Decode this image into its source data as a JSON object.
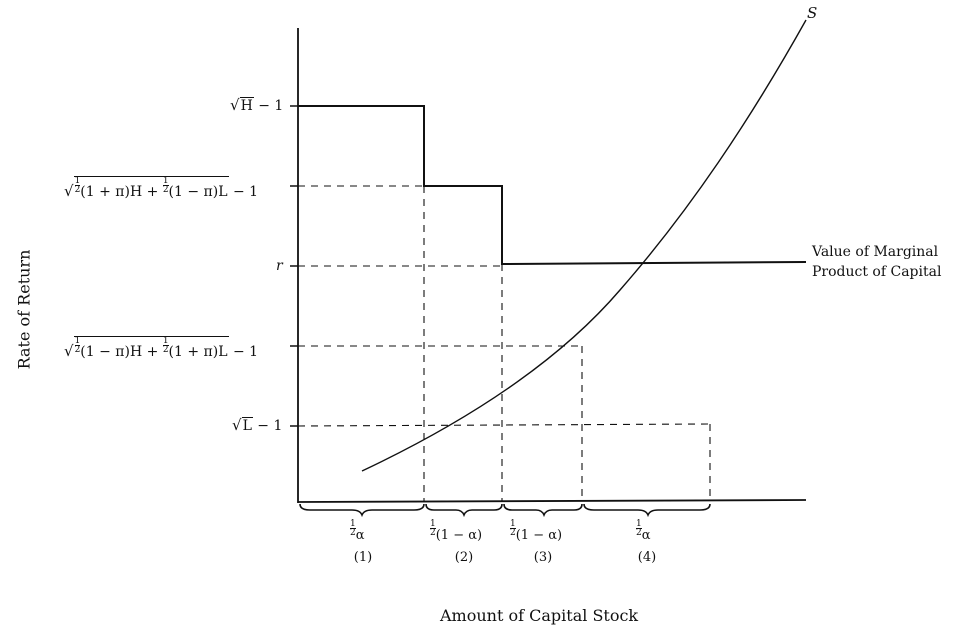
{
  "axes": {
    "y_title": "Rate of Return",
    "x_title": "Amount of Capital Stock"
  },
  "curve_label": "S",
  "mpk_label": [
    "Value of Marginal",
    "Product of Capital"
  ],
  "y_levels": {
    "sqrtH": {
      "radicand": "H",
      "suffix": " − 1"
    },
    "mix_high": {
      "parts": [
        "(1 + π)H + ",
        "(1 − π)L"
      ],
      "suffix": " − 1"
    },
    "r": "r",
    "mix_low": {
      "parts": [
        "(1 − π)H + ",
        "(1 + π)L"
      ],
      "suffix": " − 1"
    },
    "sqrtL": {
      "radicand": "L",
      "suffix": " − 1"
    }
  },
  "half": {
    "num": "1",
    "den": "2"
  },
  "segments": [
    {
      "width_text": "α",
      "index": "(1)"
    },
    {
      "width_text": "(1 − α)",
      "index": "(2)"
    },
    {
      "width_text": "(1 − α)",
      "index": "(3)"
    },
    {
      "width_text": "α",
      "index": "(4)"
    }
  ]
}
